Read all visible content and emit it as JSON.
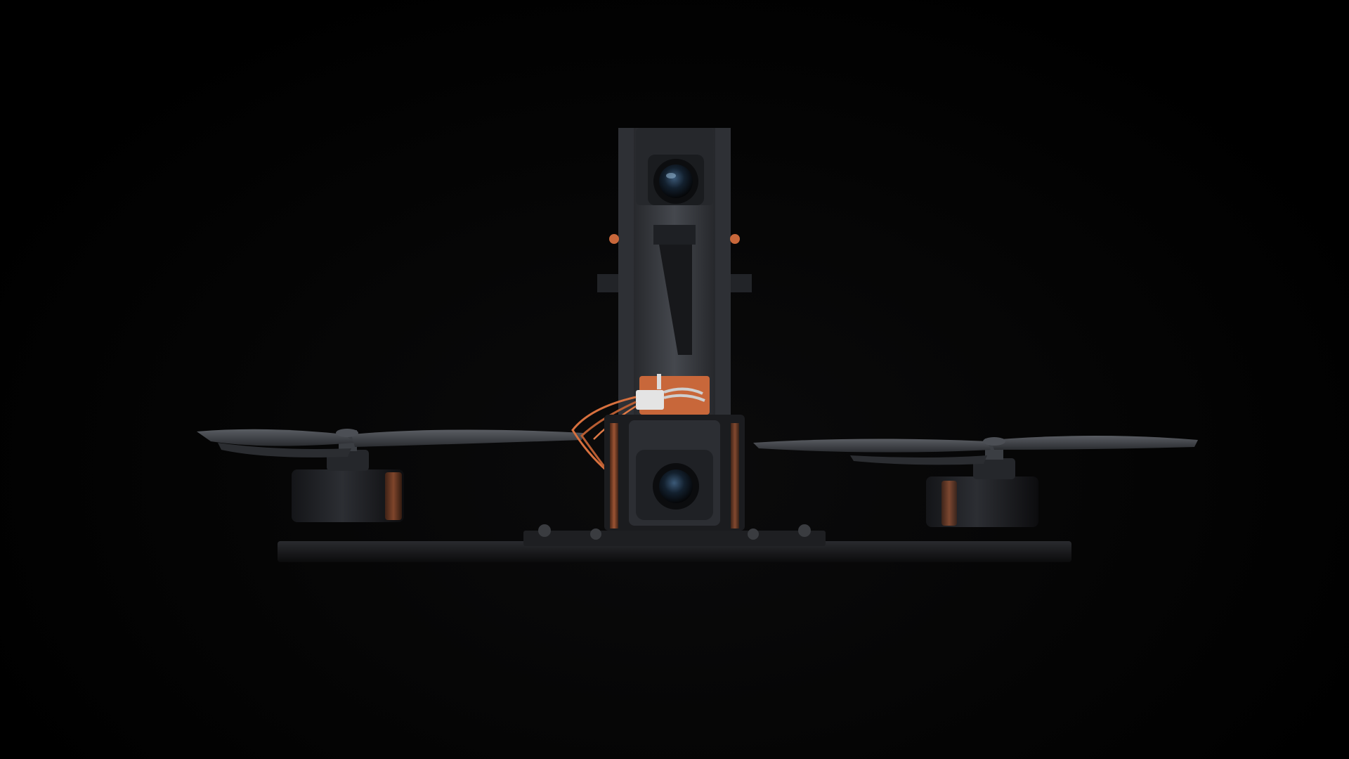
{
  "scene": {
    "subject": "fpv-drone",
    "background_color": "#000000",
    "accent_color": "#c8673a",
    "body_color": "#3a3d42",
    "frame_color": "#1b1c1f",
    "lens_color": "#0f1c2a"
  }
}
